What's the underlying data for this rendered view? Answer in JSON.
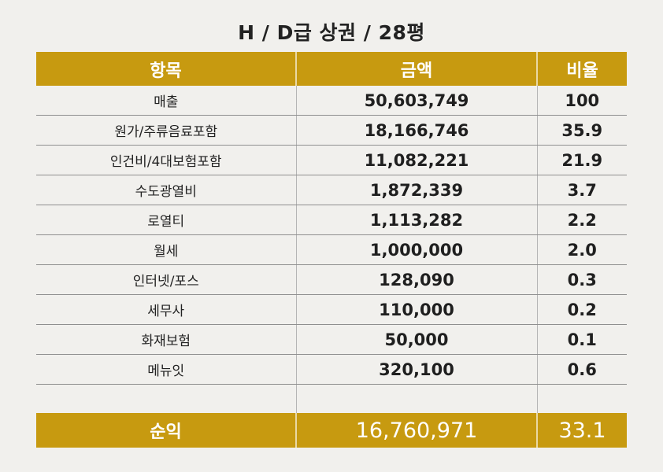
{
  "title": "H / D급 상권 / 28평",
  "headers": {
    "item": "항목",
    "amount": "금액",
    "ratio": "비율"
  },
  "rows": [
    {
      "item": "매출",
      "amount": "50,603,749",
      "ratio": "100"
    },
    {
      "item": "원가/주류음료포함",
      "amount": "18,166,746",
      "ratio": "35.9"
    },
    {
      "item": "인건비/4대보험포함",
      "amount": "11,082,221",
      "ratio": "21.9"
    },
    {
      "item": "수도광열비",
      "amount": "1,872,339",
      "ratio": "3.7"
    },
    {
      "item": "로열티",
      "amount": "1,113,282",
      "ratio": "2.2"
    },
    {
      "item": "월세",
      "amount": "1,000,000",
      "ratio": "2.0"
    },
    {
      "item": "인터넷/포스",
      "amount": "128,090",
      "ratio": "0.3"
    },
    {
      "item": "세무사",
      "amount": "110,000",
      "ratio": "0.2"
    },
    {
      "item": "화재보험",
      "amount": "50,000",
      "ratio": "0.1"
    },
    {
      "item": "메뉴잇",
      "amount": "320,100",
      "ratio": "0.6"
    }
  ],
  "total": {
    "item": "순익",
    "amount": "16,760,971",
    "ratio": "33.1"
  },
  "colors": {
    "header_bg": "#c79a10",
    "header_text": "#ffffff",
    "background": "#f1f0ed"
  }
}
